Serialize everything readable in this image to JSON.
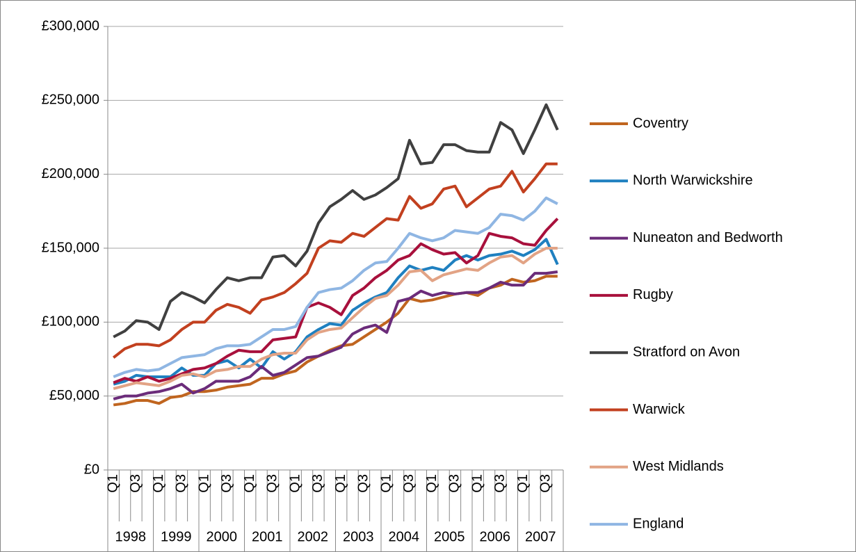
{
  "chart_data": {
    "type": "line",
    "categories": [
      "Q1",
      null,
      "Q3",
      null,
      "Q1",
      null,
      "Q3",
      null,
      "Q1",
      null,
      "Q3",
      null,
      "Q1",
      null,
      "Q3",
      null,
      "Q1",
      null,
      "Q3",
      null,
      "Q1",
      null,
      "Q3",
      null,
      "Q1",
      null,
      "Q3",
      null,
      "Q1",
      null,
      "Q3",
      null,
      "Q1",
      null,
      "Q3",
      null,
      "Q1",
      null,
      "Q3",
      null
    ],
    "category_groups": [
      "1998",
      "1999",
      "2000",
      "2001",
      "2002",
      "2003",
      "2004",
      "2005",
      "2006",
      "2007"
    ],
    "ylim": [
      0,
      300000
    ],
    "yticks": [
      {
        "value": 0,
        "label": "£0"
      },
      {
        "value": 50000,
        "label": "£50,000"
      },
      {
        "value": 100000,
        "label": "£100,000"
      },
      {
        "value": 150000,
        "label": "£150,000"
      },
      {
        "value": 200000,
        "label": "£200,000"
      },
      {
        "value": 250000,
        "label": "£250,000"
      },
      {
        "value": 300000,
        "label": "£300,000"
      }
    ],
    "grid": true,
    "legend": "right",
    "series": [
      {
        "name": "Coventry",
        "color": "#c0651f",
        "values": [
          44000,
          45000,
          47000,
          47000,
          45000,
          49000,
          50000,
          53000,
          53000,
          54000,
          56000,
          57000,
          58000,
          62000,
          62000,
          65000,
          67000,
          73000,
          77000,
          81000,
          84000,
          85000,
          90000,
          95000,
          100000,
          106000,
          116000,
          114000,
          115000,
          117000,
          119000,
          120000,
          118000,
          123000,
          125000,
          129000,
          127000,
          128000,
          131000,
          131000
        ]
      },
      {
        "name": "North Warwickshire",
        "color": "#1f80c0",
        "values": [
          58000,
          60000,
          64000,
          63000,
          63000,
          63000,
          69000,
          64000,
          64000,
          72000,
          74000,
          69000,
          75000,
          69000,
          80000,
          75000,
          80000,
          90000,
          95000,
          99000,
          98000,
          108000,
          113000,
          117000,
          120000,
          130000,
          138000,
          135000,
          137000,
          135000,
          142000,
          145000,
          142000,
          145000,
          146000,
          148000,
          145000,
          149000,
          156000,
          139000
        ]
      },
      {
        "name": "Nuneaton and Bedworth",
        "color": "#6b2c7a",
        "values": [
          48000,
          50000,
          50000,
          52000,
          53000,
          55000,
          58000,
          52000,
          55000,
          60000,
          60000,
          60000,
          63000,
          70000,
          64000,
          66000,
          71000,
          76000,
          77000,
          80000,
          83000,
          92000,
          96000,
          98000,
          93000,
          114000,
          116000,
          121000,
          118000,
          120000,
          119000,
          120000,
          120000,
          123000,
          127000,
          125000,
          125000,
          133000,
          133000,
          134000
        ]
      },
      {
        "name": "Rugby",
        "color": "#a8103c",
        "values": [
          59000,
          62000,
          60000,
          63000,
          60000,
          62000,
          65000,
          68000,
          69000,
          72000,
          77000,
          81000,
          80000,
          80000,
          88000,
          89000,
          90000,
          110000,
          113000,
          110000,
          105000,
          118000,
          123000,
          130000,
          135000,
          142000,
          145000,
          153000,
          149000,
          146000,
          147000,
          140000,
          145000,
          160000,
          158000,
          157000,
          153000,
          152000,
          162000,
          170000
        ]
      },
      {
        "name": "Stratford on Avon",
        "color": "#404040",
        "values": [
          90000,
          94000,
          101000,
          100000,
          95000,
          114000,
          120000,
          117000,
          113000,
          122000,
          130000,
          128000,
          130000,
          130000,
          144000,
          145000,
          138000,
          148000,
          167000,
          178000,
          183000,
          189000,
          183000,
          186000,
          191000,
          197000,
          223000,
          207000,
          208000,
          220000,
          220000,
          216000,
          215000,
          215000,
          235000,
          230000,
          214000,
          230000,
          247000,
          230000
        ]
      },
      {
        "name": "Warwick",
        "color": "#c2401f",
        "values": [
          76000,
          82000,
          85000,
          85000,
          84000,
          88000,
          95000,
          100000,
          100000,
          108000,
          112000,
          110000,
          106000,
          115000,
          117000,
          120000,
          126000,
          133000,
          150000,
          155000,
          154000,
          160000,
          158000,
          164000,
          170000,
          169000,
          185000,
          177000,
          180000,
          190000,
          192000,
          178000,
          184000,
          190000,
          192000,
          202000,
          188000,
          197000,
          207000,
          207000
        ]
      },
      {
        "name": "West Midlands",
        "color": "#e2a385",
        "values": [
          55000,
          57000,
          59000,
          58000,
          57000,
          60000,
          64000,
          65000,
          63000,
          67000,
          68000,
          70000,
          70000,
          75000,
          78000,
          79000,
          79000,
          88000,
          93000,
          95000,
          96000,
          103000,
          110000,
          116000,
          118000,
          125000,
          134000,
          135000,
          128000,
          132000,
          134000,
          136000,
          135000,
          140000,
          144000,
          145000,
          140000,
          146000,
          150000,
          150000
        ]
      },
      {
        "name": "England",
        "color": "#8fb6e3",
        "values": [
          63000,
          66000,
          68000,
          67000,
          68000,
          72000,
          76000,
          77000,
          78000,
          82000,
          84000,
          84000,
          85000,
          90000,
          95000,
          95000,
          97000,
          110000,
          120000,
          122000,
          123000,
          128000,
          135000,
          140000,
          141000,
          150000,
          160000,
          157000,
          155000,
          157000,
          162000,
          161000,
          160000,
          164000,
          173000,
          172000,
          169000,
          175000,
          184000,
          180000
        ]
      }
    ]
  }
}
